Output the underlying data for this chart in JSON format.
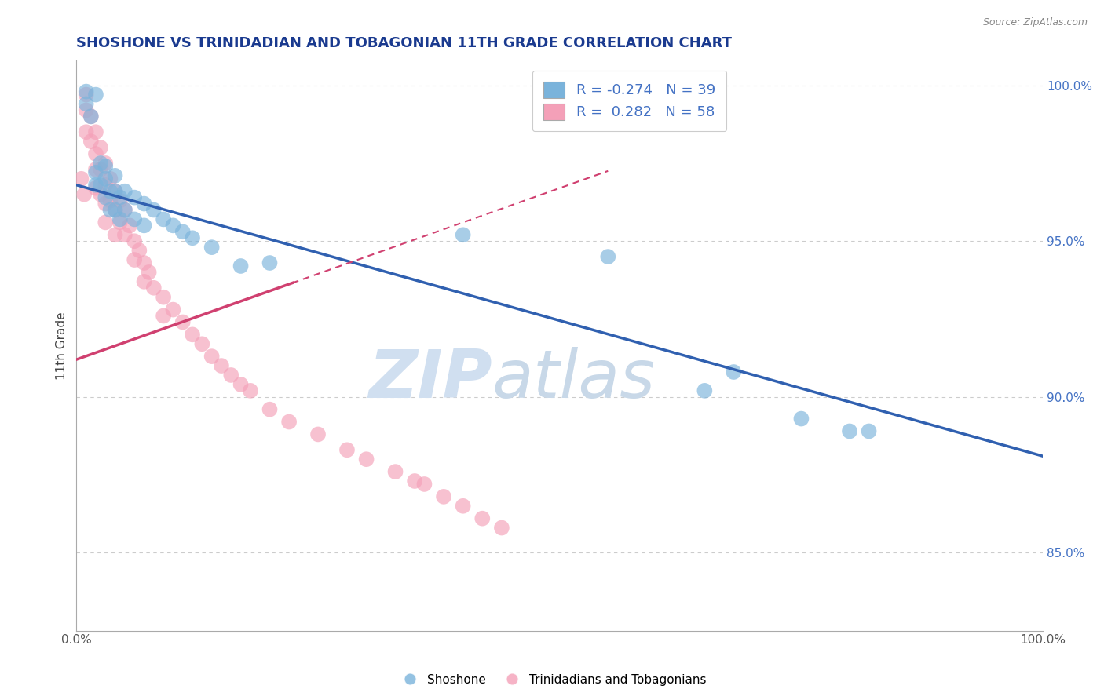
{
  "title": "SHOSHONE VS TRINIDADIAN AND TOBAGONIAN 11TH GRADE CORRELATION CHART",
  "source_text": "Source: ZipAtlas.com",
  "ylabel": "11th Grade",
  "xlim": [
    0.0,
    1.0
  ],
  "ylim": [
    0.825,
    1.008
  ],
  "yticks": [
    0.85,
    0.9,
    0.95,
    1.0
  ],
  "ytick_labels": [
    "85.0%",
    "90.0%",
    "95.0%",
    "100.0%"
  ],
  "xticks": [
    0.0,
    0.2,
    0.4,
    0.6,
    0.8,
    1.0
  ],
  "xtick_labels": [
    "0.0%",
    "",
    "",
    "",
    "",
    "100.0%"
  ],
  "legend_r_blue": "-0.274",
  "legend_n_blue": "39",
  "legend_r_pink": "0.282",
  "legend_n_pink": "58",
  "blue_color": "#7ab3db",
  "pink_color": "#f4a0b8",
  "blue_line_color": "#3060b0",
  "pink_line_color": "#d04070",
  "pink_line_dashed": true,
  "background_color": "#ffffff",
  "title_color": "#1a3a8f",
  "axis_label_color": "#4472c4",
  "source_color": "#888888",
  "shoshone_x": [
    0.01,
    0.01,
    0.015,
    0.02,
    0.02,
    0.02,
    0.025,
    0.025,
    0.03,
    0.03,
    0.03,
    0.035,
    0.035,
    0.04,
    0.04,
    0.04,
    0.045,
    0.045,
    0.05,
    0.05,
    0.06,
    0.06,
    0.07,
    0.07,
    0.08,
    0.09,
    0.1,
    0.11,
    0.12,
    0.14,
    0.17,
    0.2,
    0.4,
    0.55,
    0.65,
    0.68,
    0.75,
    0.8,
    0.82
  ],
  "shoshone_y": [
    0.998,
    0.994,
    0.99,
    0.972,
    0.968,
    0.997,
    0.975,
    0.968,
    0.974,
    0.97,
    0.964,
    0.966,
    0.96,
    0.971,
    0.966,
    0.96,
    0.964,
    0.957,
    0.966,
    0.96,
    0.964,
    0.957,
    0.962,
    0.955,
    0.96,
    0.957,
    0.955,
    0.953,
    0.951,
    0.948,
    0.942,
    0.943,
    0.952,
    0.945,
    0.902,
    0.908,
    0.893,
    0.889,
    0.889
  ],
  "trini_x": [
    0.005,
    0.008,
    0.01,
    0.01,
    0.01,
    0.015,
    0.015,
    0.02,
    0.02,
    0.02,
    0.02,
    0.025,
    0.025,
    0.025,
    0.03,
    0.03,
    0.03,
    0.03,
    0.035,
    0.035,
    0.04,
    0.04,
    0.04,
    0.045,
    0.045,
    0.05,
    0.05,
    0.055,
    0.06,
    0.06,
    0.065,
    0.07,
    0.07,
    0.075,
    0.08,
    0.09,
    0.09,
    0.1,
    0.11,
    0.12,
    0.13,
    0.14,
    0.15,
    0.16,
    0.17,
    0.18,
    0.2,
    0.22,
    0.25,
    0.28,
    0.3,
    0.33,
    0.35,
    0.36,
    0.38,
    0.4,
    0.42,
    0.44
  ],
  "trini_y": [
    0.97,
    0.965,
    0.997,
    0.992,
    0.985,
    0.99,
    0.982,
    0.985,
    0.978,
    0.973,
    0.967,
    0.98,
    0.973,
    0.965,
    0.975,
    0.968,
    0.962,
    0.956,
    0.97,
    0.963,
    0.966,
    0.96,
    0.952,
    0.963,
    0.956,
    0.96,
    0.952,
    0.955,
    0.95,
    0.944,
    0.947,
    0.943,
    0.937,
    0.94,
    0.935,
    0.932,
    0.926,
    0.928,
    0.924,
    0.92,
    0.917,
    0.913,
    0.91,
    0.907,
    0.904,
    0.902,
    0.896,
    0.892,
    0.888,
    0.883,
    0.88,
    0.876,
    0.873,
    0.872,
    0.868,
    0.865,
    0.861,
    0.858
  ],
  "watermark_zip": "ZIP",
  "watermark_atlas": "atlas",
  "watermark_color_zip": "#d0dff0",
  "watermark_color_atlas": "#c8d8e8",
  "figsize": [
    14.06,
    8.92
  ],
  "dpi": 100
}
